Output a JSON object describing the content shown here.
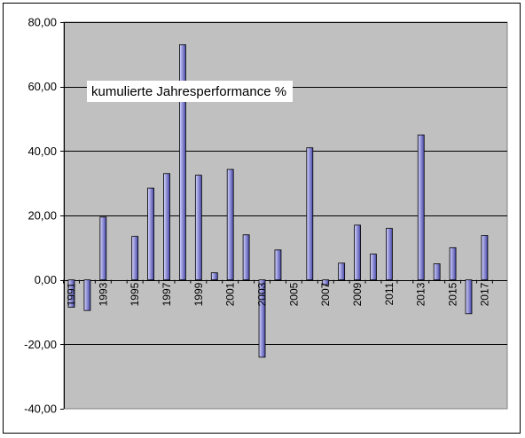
{
  "chart_data": {
    "type": "bar",
    "title": "kumulierte Jahresperformance %",
    "xlabel": "",
    "ylabel": "",
    "ylim": [
      -40,
      80
    ],
    "grid": true,
    "y_tick_labels": [
      "80,00",
      "60,00",
      "40,00",
      "20,00",
      "0,00",
      "-20,00",
      "-40,00"
    ],
    "y_tick_values": [
      80,
      60,
      40,
      20,
      0,
      -20,
      -40
    ],
    "x_tick_labels": [
      "1991",
      "1993",
      "1995",
      "1997",
      "1999",
      "2001",
      "2003",
      "2005",
      "2007",
      "2009",
      "2011",
      "2013",
      "2015",
      "2017"
    ],
    "categories": [
      "1991",
      "1992",
      "1993",
      "1994",
      "1995",
      "1996",
      "1997",
      "1998",
      "1999",
      "2000",
      "2001",
      "2002",
      "2003",
      "2004",
      "2005",
      "2006",
      "2007",
      "2008",
      "2009",
      "2010",
      "2011",
      "2012",
      "2013",
      "2014",
      "2015",
      "2016",
      "2017"
    ],
    "values": [
      -8.5,
      -9.5,
      19.5,
      0,
      13.5,
      28.5,
      33,
      73,
      32.5,
      2.2,
      34.3,
      14,
      -24,
      9.3,
      0,
      41,
      -1.5,
      5.2,
      17,
      8,
      16,
      0,
      45,
      5,
      10,
      -10.5,
      13.8
    ],
    "colors": {
      "plot_background": "#c0c0c0",
      "bar_fill_light": "#d4d4ff",
      "bar_fill_dark": "#4848a8",
      "bar_stroke": "#000000",
      "gridline": "#000000"
    }
  }
}
